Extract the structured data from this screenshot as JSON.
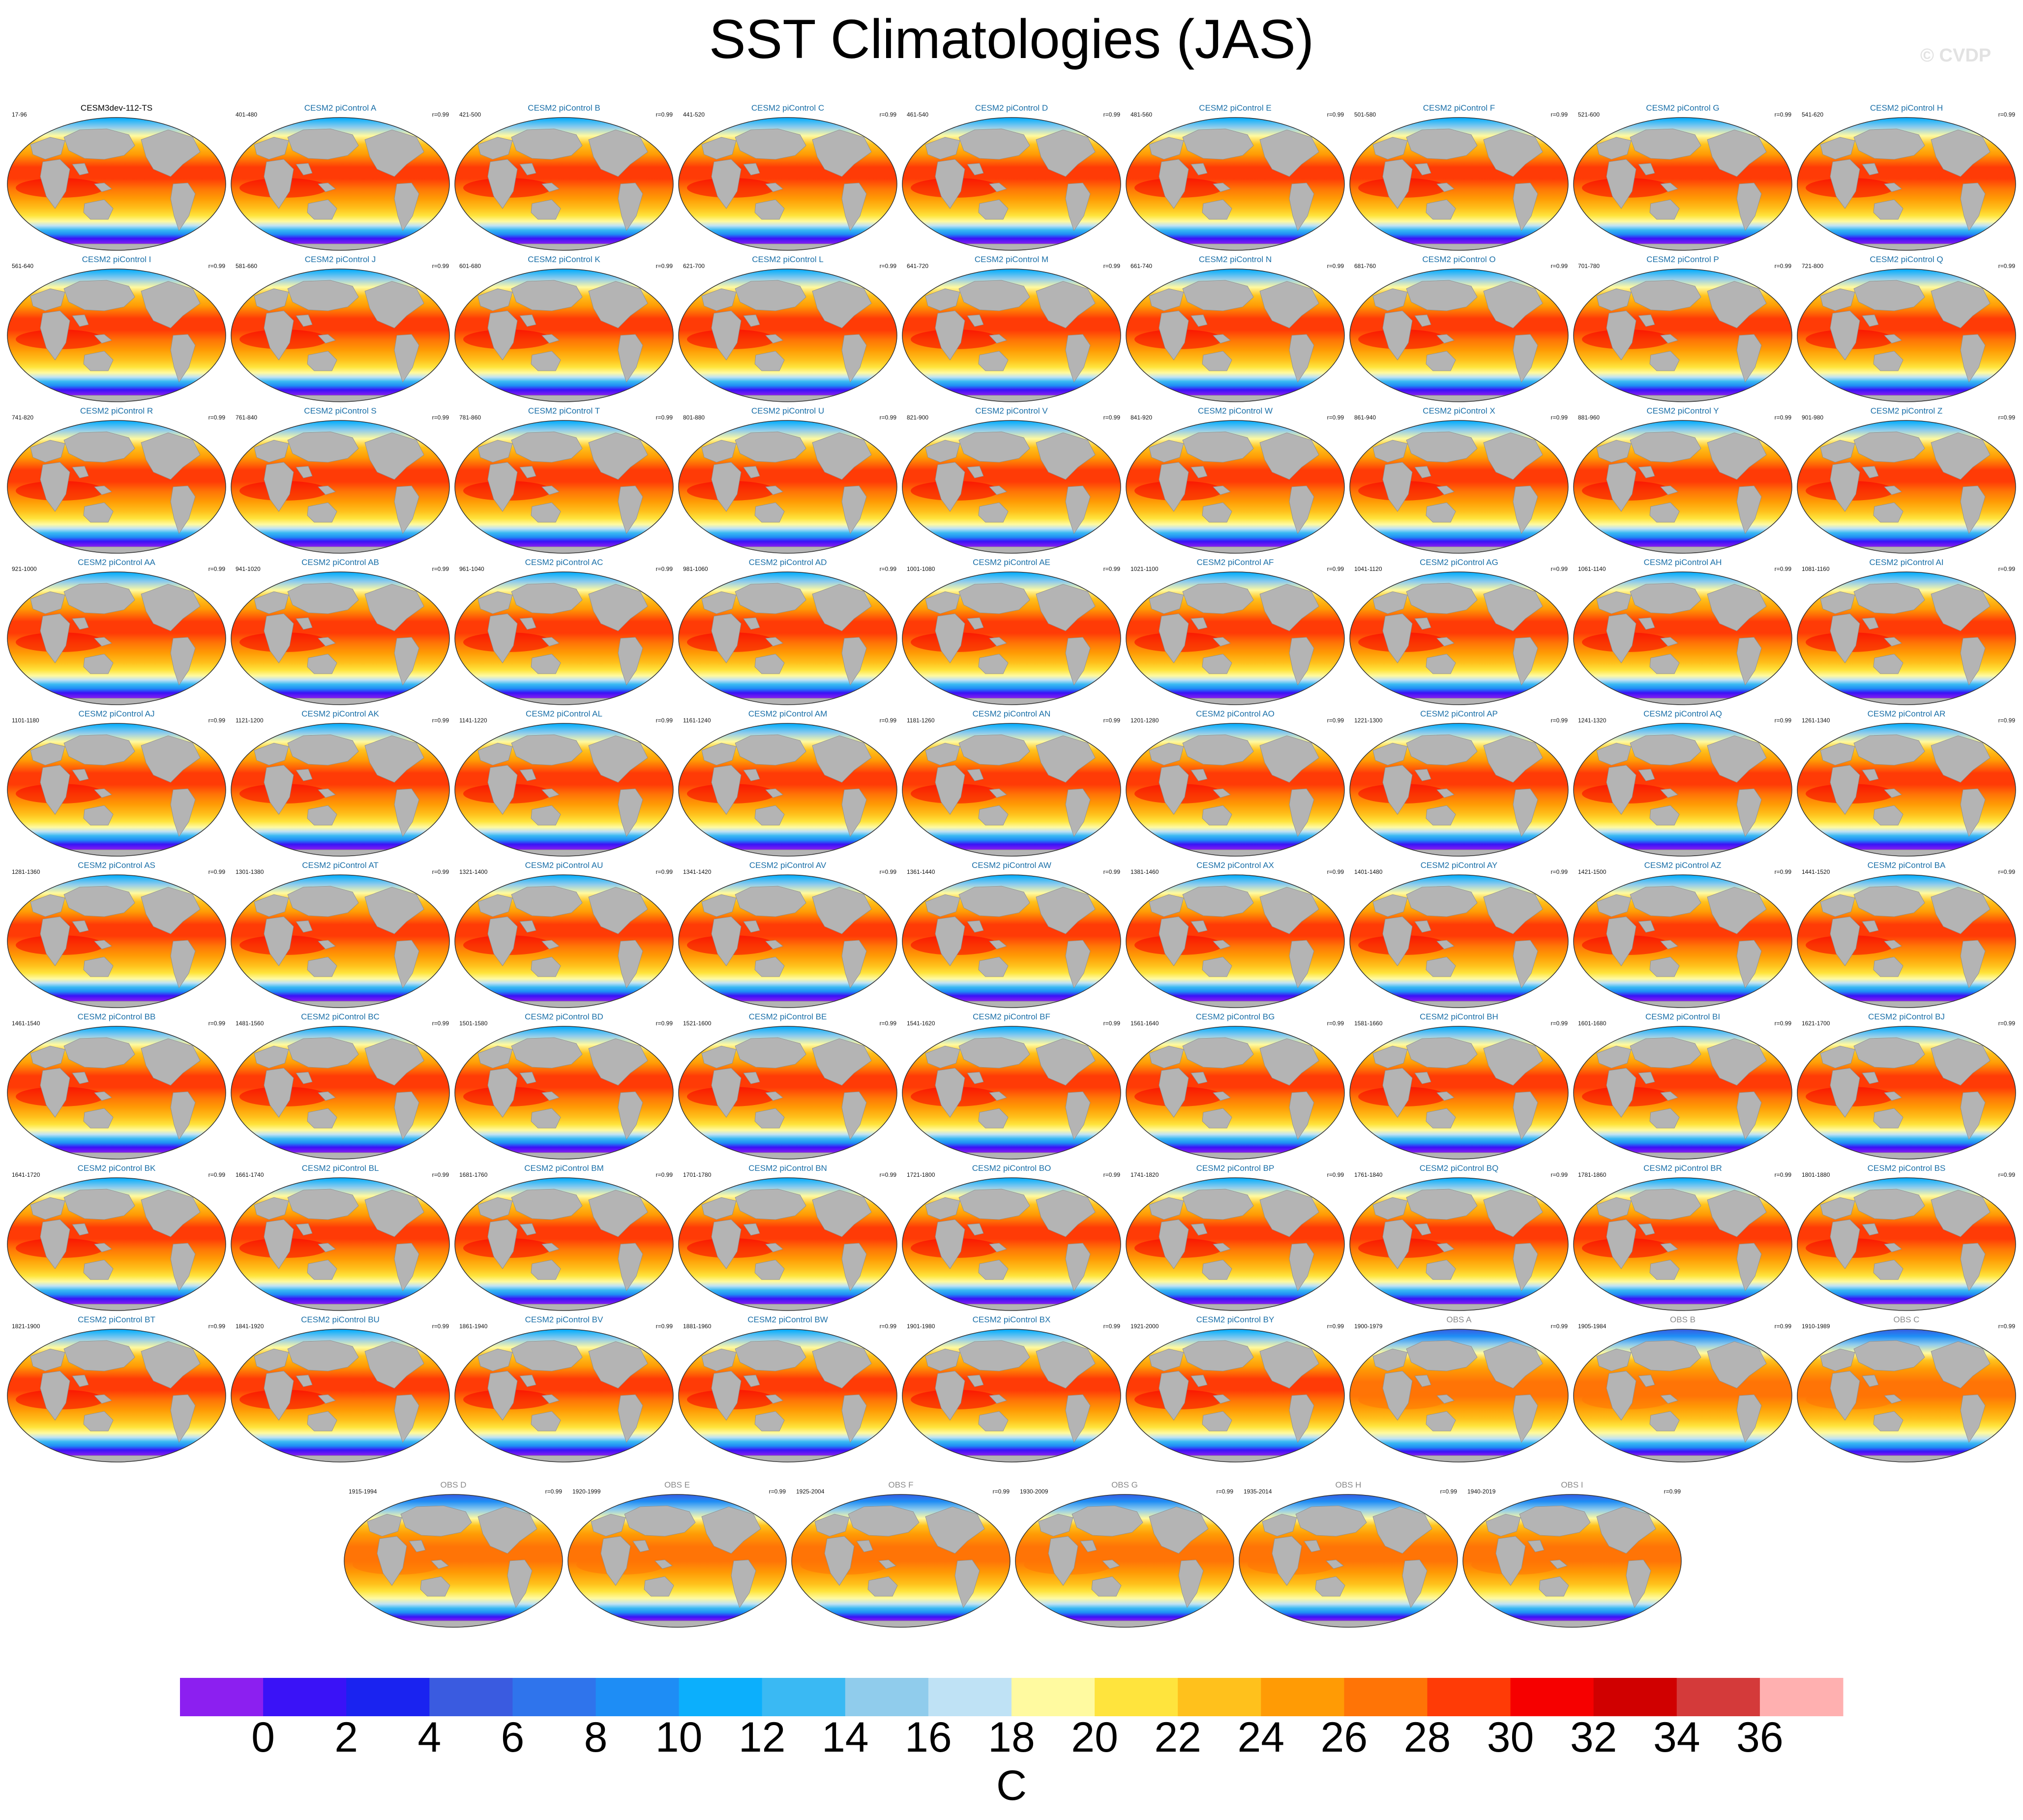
{
  "title": "SST Climatologies (JAS)",
  "copyright": "© CVDP",
  "chart_data": {
    "type": "heatmap",
    "projection": "global-ellipse",
    "title": "SST Climatologies (JAS)",
    "colorbar": {
      "unit": "C",
      "ticks": [
        "0",
        "2",
        "4",
        "6",
        "8",
        "10",
        "12",
        "14",
        "16",
        "18",
        "20",
        "22",
        "24",
        "26",
        "28",
        "30",
        "32",
        "34",
        "36"
      ],
      "colors": [
        "#8c1ff0",
        "#3a12f7",
        "#1a23f0",
        "#3a5be0",
        "#2f74ec",
        "#1e8df5",
        "#0caffc",
        "#3ab9f3",
        "#90ccec",
        "#bfe2f5",
        "#fffaa0",
        "#ffe43d",
        "#ffc11c",
        "#ff9b05",
        "#ff7406",
        "#ff3b06",
        "#f60000",
        "#d00000",
        "#d43a3a",
        "#ffb0b0"
      ]
    },
    "land_color": "#b4b4b4",
    "panels": [
      {
        "title": "CESM3dev-112-TS",
        "years": "17-96",
        "corr": "",
        "kind": "ref"
      },
      {
        "title": "CESM2 piControl A",
        "years": "401-480",
        "corr": "r=0.99",
        "kind": "ctl"
      },
      {
        "title": "CESM2 piControl B",
        "years": "421-500",
        "corr": "r=0.99",
        "kind": "ctl"
      },
      {
        "title": "CESM2 piControl C",
        "years": "441-520",
        "corr": "r=0.99",
        "kind": "ctl"
      },
      {
        "title": "CESM2 piControl D",
        "years": "461-540",
        "corr": "r=0.99",
        "kind": "ctl"
      },
      {
        "title": "CESM2 piControl E",
        "years": "481-560",
        "corr": "r=0.99",
        "kind": "ctl"
      },
      {
        "title": "CESM2 piControl F",
        "years": "501-580",
        "corr": "r=0.99",
        "kind": "ctl"
      },
      {
        "title": "CESM2 piControl G",
        "years": "521-600",
        "corr": "r=0.99",
        "kind": "ctl"
      },
      {
        "title": "CESM2 piControl H",
        "years": "541-620",
        "corr": "r=0.99",
        "kind": "ctl"
      },
      {
        "title": "CESM2 piControl I",
        "years": "561-640",
        "corr": "r=0.99",
        "kind": "ctl"
      },
      {
        "title": "CESM2 piControl J",
        "years": "581-660",
        "corr": "r=0.99",
        "kind": "ctl"
      },
      {
        "title": "CESM2 piControl K",
        "years": "601-680",
        "corr": "r=0.99",
        "kind": "ctl"
      },
      {
        "title": "CESM2 piControl L",
        "years": "621-700",
        "corr": "r=0.99",
        "kind": "ctl"
      },
      {
        "title": "CESM2 piControl M",
        "years": "641-720",
        "corr": "r=0.99",
        "kind": "ctl"
      },
      {
        "title": "CESM2 piControl N",
        "years": "661-740",
        "corr": "r=0.99",
        "kind": "ctl"
      },
      {
        "title": "CESM2 piControl O",
        "years": "681-760",
        "corr": "r=0.99",
        "kind": "ctl"
      },
      {
        "title": "CESM2 piControl P",
        "years": "701-780",
        "corr": "r=0.99",
        "kind": "ctl"
      },
      {
        "title": "CESM2 piControl Q",
        "years": "721-800",
        "corr": "r=0.99",
        "kind": "ctl"
      },
      {
        "title": "CESM2 piControl R",
        "years": "741-820",
        "corr": "r=0.99",
        "kind": "ctl"
      },
      {
        "title": "CESM2 piControl S",
        "years": "761-840",
        "corr": "r=0.99",
        "kind": "ctl"
      },
      {
        "title": "CESM2 piControl T",
        "years": "781-860",
        "corr": "r=0.99",
        "kind": "ctl"
      },
      {
        "title": "CESM2 piControl U",
        "years": "801-880",
        "corr": "r=0.99",
        "kind": "ctl"
      },
      {
        "title": "CESM2 piControl V",
        "years": "821-900",
        "corr": "r=0.99",
        "kind": "ctl"
      },
      {
        "title": "CESM2 piControl W",
        "years": "841-920",
        "corr": "r=0.99",
        "kind": "ctl"
      },
      {
        "title": "CESM2 piControl X",
        "years": "861-940",
        "corr": "r=0.99",
        "kind": "ctl"
      },
      {
        "title": "CESM2 piControl Y",
        "years": "881-960",
        "corr": "r=0.99",
        "kind": "ctl"
      },
      {
        "title": "CESM2 piControl Z",
        "years": "901-980",
        "corr": "r=0.99",
        "kind": "ctl"
      },
      {
        "title": "CESM2 piControl AA",
        "years": "921-1000",
        "corr": "r=0.99",
        "kind": "ctl"
      },
      {
        "title": "CESM2 piControl AB",
        "years": "941-1020",
        "corr": "r=0.99",
        "kind": "ctl"
      },
      {
        "title": "CESM2 piControl AC",
        "years": "961-1040",
        "corr": "r=0.99",
        "kind": "ctl"
      },
      {
        "title": "CESM2 piControl AD",
        "years": "981-1060",
        "corr": "r=0.99",
        "kind": "ctl"
      },
      {
        "title": "CESM2 piControl AE",
        "years": "1001-1080",
        "corr": "r=0.99",
        "kind": "ctl"
      },
      {
        "title": "CESM2 piControl AF",
        "years": "1021-1100",
        "corr": "r=0.99",
        "kind": "ctl"
      },
      {
        "title": "CESM2 piControl AG",
        "years": "1041-1120",
        "corr": "r=0.99",
        "kind": "ctl"
      },
      {
        "title": "CESM2 piControl AH",
        "years": "1061-1140",
        "corr": "r=0.99",
        "kind": "ctl"
      },
      {
        "title": "CESM2 piControl AI",
        "years": "1081-1160",
        "corr": "r=0.99",
        "kind": "ctl"
      },
      {
        "title": "CESM2 piControl AJ",
        "years": "1101-1180",
        "corr": "r=0.99",
        "kind": "ctl"
      },
      {
        "title": "CESM2 piControl AK",
        "years": "1121-1200",
        "corr": "r=0.99",
        "kind": "ctl"
      },
      {
        "title": "CESM2 piControl AL",
        "years": "1141-1220",
        "corr": "r=0.99",
        "kind": "ctl"
      },
      {
        "title": "CESM2 piControl AM",
        "years": "1161-1240",
        "corr": "r=0.99",
        "kind": "ctl"
      },
      {
        "title": "CESM2 piControl AN",
        "years": "1181-1260",
        "corr": "r=0.99",
        "kind": "ctl"
      },
      {
        "title": "CESM2 piControl AO",
        "years": "1201-1280",
        "corr": "r=0.99",
        "kind": "ctl"
      },
      {
        "title": "CESM2 piControl AP",
        "years": "1221-1300",
        "corr": "r=0.99",
        "kind": "ctl"
      },
      {
        "title": "CESM2 piControl AQ",
        "years": "1241-1320",
        "corr": "r=0.99",
        "kind": "ctl"
      },
      {
        "title": "CESM2 piControl AR",
        "years": "1261-1340",
        "corr": "r=0.99",
        "kind": "ctl"
      },
      {
        "title": "CESM2 piControl AS",
        "years": "1281-1360",
        "corr": "r=0.99",
        "kind": "ctl"
      },
      {
        "title": "CESM2 piControl AT",
        "years": "1301-1380",
        "corr": "r=0.99",
        "kind": "ctl"
      },
      {
        "title": "CESM2 piControl AU",
        "years": "1321-1400",
        "corr": "r=0.99",
        "kind": "ctl"
      },
      {
        "title": "CESM2 piControl AV",
        "years": "1341-1420",
        "corr": "r=0.99",
        "kind": "ctl"
      },
      {
        "title": "CESM2 piControl AW",
        "years": "1361-1440",
        "corr": "r=0.99",
        "kind": "ctl"
      },
      {
        "title": "CESM2 piControl AX",
        "years": "1381-1460",
        "corr": "r=0.99",
        "kind": "ctl"
      },
      {
        "title": "CESM2 piControl AY",
        "years": "1401-1480",
        "corr": "r=0.99",
        "kind": "ctl"
      },
      {
        "title": "CESM2 piControl AZ",
        "years": "1421-1500",
        "corr": "r=0.99",
        "kind": "ctl"
      },
      {
        "title": "CESM2 piControl BA",
        "years": "1441-1520",
        "corr": "r=0.99",
        "kind": "ctl"
      },
      {
        "title": "CESM2 piControl BB",
        "years": "1461-1540",
        "corr": "r=0.99",
        "kind": "ctl"
      },
      {
        "title": "CESM2 piControl BC",
        "years": "1481-1560",
        "corr": "r=0.99",
        "kind": "ctl"
      },
      {
        "title": "CESM2 piControl BD",
        "years": "1501-1580",
        "corr": "r=0.99",
        "kind": "ctl"
      },
      {
        "title": "CESM2 piControl BE",
        "years": "1521-1600",
        "corr": "r=0.99",
        "kind": "ctl"
      },
      {
        "title": "CESM2 piControl BF",
        "years": "1541-1620",
        "corr": "r=0.99",
        "kind": "ctl"
      },
      {
        "title": "CESM2 piControl BG",
        "years": "1561-1640",
        "corr": "r=0.99",
        "kind": "ctl"
      },
      {
        "title": "CESM2 piControl BH",
        "years": "1581-1660",
        "corr": "r=0.99",
        "kind": "ctl"
      },
      {
        "title": "CESM2 piControl BI",
        "years": "1601-1680",
        "corr": "r=0.99",
        "kind": "ctl"
      },
      {
        "title": "CESM2 piControl BJ",
        "years": "1621-1700",
        "corr": "r=0.99",
        "kind": "ctl"
      },
      {
        "title": "CESM2 piControl BK",
        "years": "1641-1720",
        "corr": "r=0.99",
        "kind": "ctl"
      },
      {
        "title": "CESM2 piControl BL",
        "years": "1661-1740",
        "corr": "r=0.99",
        "kind": "ctl"
      },
      {
        "title": "CESM2 piControl BM",
        "years": "1681-1760",
        "corr": "r=0.99",
        "kind": "ctl"
      },
      {
        "title": "CESM2 piControl BN",
        "years": "1701-1780",
        "corr": "r=0.99",
        "kind": "ctl"
      },
      {
        "title": "CESM2 piControl BO",
        "years": "1721-1800",
        "corr": "r=0.99",
        "kind": "ctl"
      },
      {
        "title": "CESM2 piControl BP",
        "years": "1741-1820",
        "corr": "r=0.99",
        "kind": "ctl"
      },
      {
        "title": "CESM2 piControl BQ",
        "years": "1761-1840",
        "corr": "r=0.99",
        "kind": "ctl"
      },
      {
        "title": "CESM2 piControl BR",
        "years": "1781-1860",
        "corr": "r=0.99",
        "kind": "ctl"
      },
      {
        "title": "CESM2 piControl BS",
        "years": "1801-1880",
        "corr": "r=0.99",
        "kind": "ctl"
      },
      {
        "title": "CESM2 piControl BT",
        "years": "1821-1900",
        "corr": "r=0.99",
        "kind": "ctl"
      },
      {
        "title": "CESM2 piControl BU",
        "years": "1841-1920",
        "corr": "r=0.99",
        "kind": "ctl"
      },
      {
        "title": "CESM2 piControl BV",
        "years": "1861-1940",
        "corr": "r=0.99",
        "kind": "ctl"
      },
      {
        "title": "CESM2 piControl BW",
        "years": "1881-1960",
        "corr": "r=0.99",
        "kind": "ctl"
      },
      {
        "title": "CESM2 piControl BX",
        "years": "1901-1980",
        "corr": "r=0.99",
        "kind": "ctl"
      },
      {
        "title": "CESM2 piControl BY",
        "years": "1921-2000",
        "corr": "r=0.99",
        "kind": "ctl"
      },
      {
        "title": "OBS A",
        "years": "1900-1979",
        "corr": "r=0.99",
        "kind": "obs"
      },
      {
        "title": "OBS B",
        "years": "1905-1984",
        "corr": "r=0.99",
        "kind": "obs"
      },
      {
        "title": "OBS C",
        "years": "1910-1989",
        "corr": "r=0.99",
        "kind": "obs"
      },
      {
        "title": "OBS D",
        "years": "1915-1994",
        "corr": "r=0.99",
        "kind": "obs"
      },
      {
        "title": "OBS E",
        "years": "1920-1999",
        "corr": "r=0.99",
        "kind": "obs"
      },
      {
        "title": "OBS F",
        "years": "1925-2004",
        "corr": "r=0.99",
        "kind": "obs"
      },
      {
        "title": "OBS G",
        "years": "1930-2009",
        "corr": "r=0.99",
        "kind": "obs"
      },
      {
        "title": "OBS H",
        "years": "1935-2014",
        "corr": "r=0.99",
        "kind": "obs"
      },
      {
        "title": "OBS I",
        "years": "1940-2019",
        "corr": "r=0.99",
        "kind": "obs"
      }
    ]
  }
}
